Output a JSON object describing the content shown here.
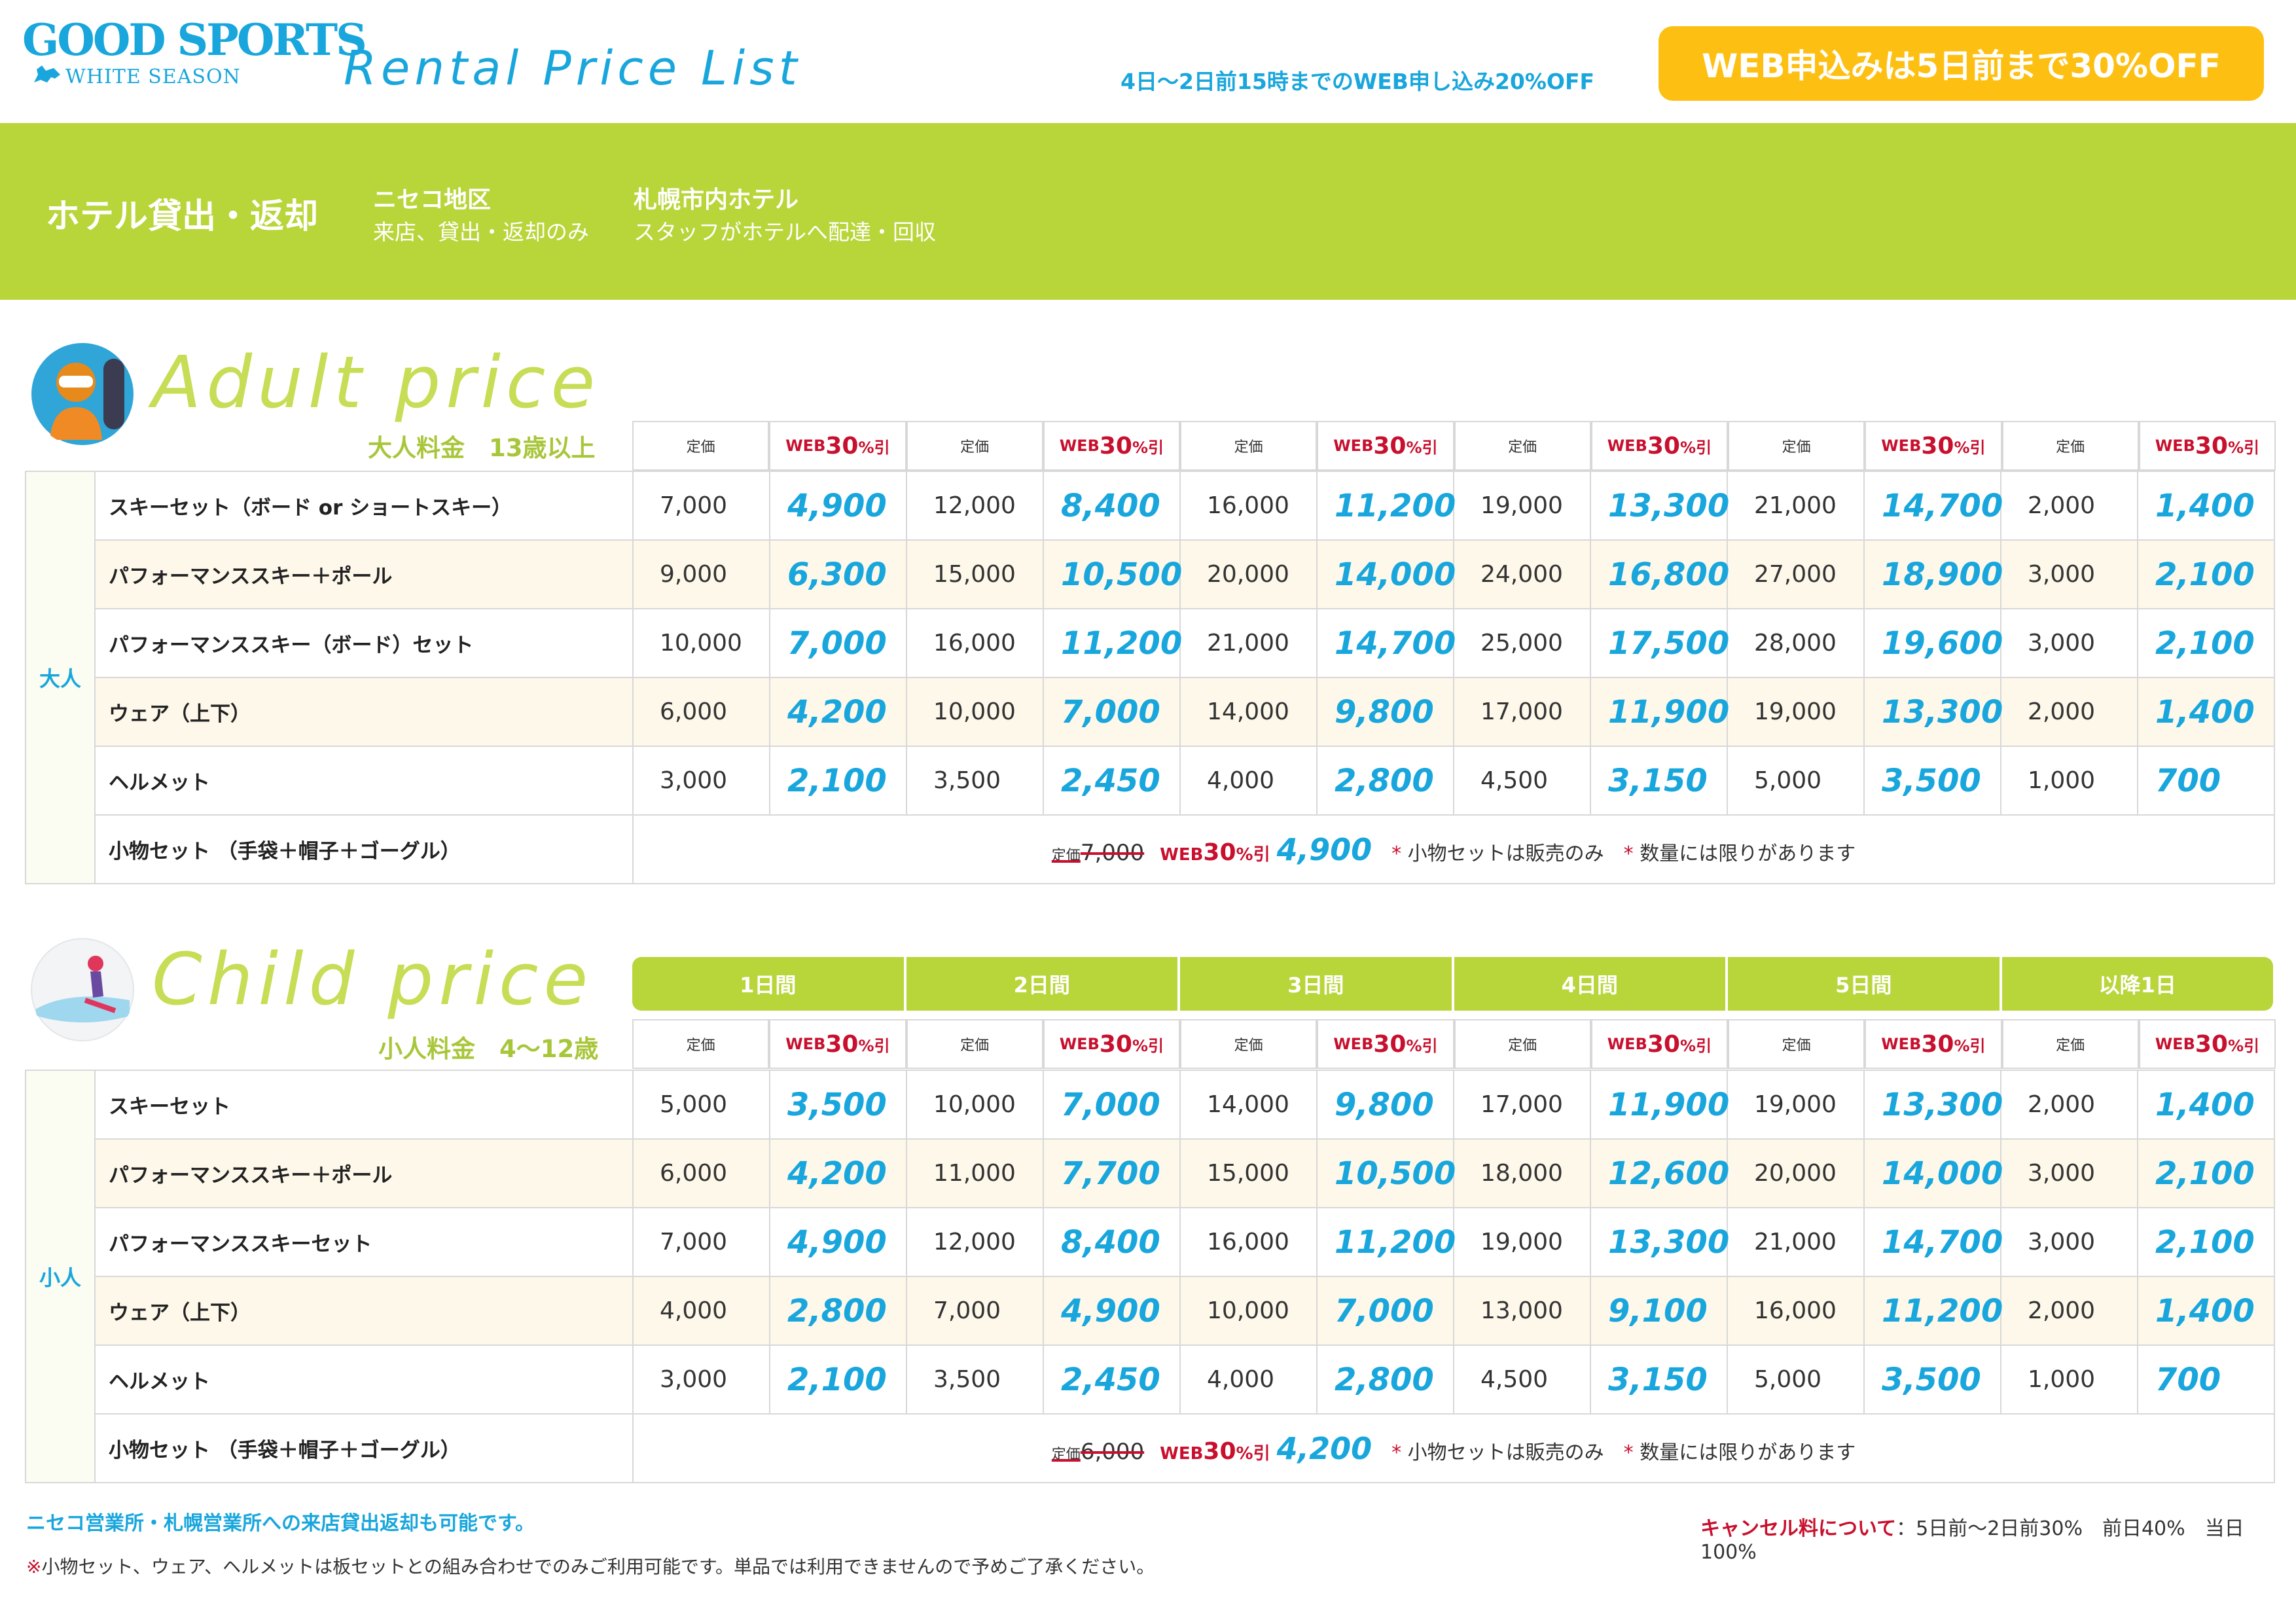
{
  "brand": {
    "name": "GOOD SPORTS",
    "sub": "WHITE SEASON",
    "title": "Rental Price List"
  },
  "promo": {
    "small": "4日〜2日前15時までのWEB申し込み20%OFF",
    "badge": "WEB申込みは5日前まで30%OFF"
  },
  "band": {
    "title": "ホテル貸出・返却",
    "areas": [
      {
        "name": "ニセコ地区",
        "desc": "来店、貸出・返却のみ"
      },
      {
        "name": "札幌市内ホテル",
        "desc": "スタッフがホテルへ配達・回収"
      }
    ]
  },
  "headers": {
    "regular": "定価",
    "web_prefix": "WEB",
    "web_pct": "30",
    "web_suffix": "%引",
    "days": [
      "1日間",
      "2日間",
      "3日間",
      "4日間",
      "5日間",
      "以降1日"
    ]
  },
  "adult": {
    "title": "Adult price",
    "subtitle": "大人料金　13歳以上",
    "category": "大人",
    "rows": [
      {
        "name": "スキーセット（ボード or ショートスキー）",
        "prices": [
          [
            "7,000",
            "4,900"
          ],
          [
            "12,000",
            "8,400"
          ],
          [
            "16,000",
            "11,200"
          ],
          [
            "19,000",
            "13,300"
          ],
          [
            "21,000",
            "14,700"
          ],
          [
            "2,000",
            "1,400"
          ]
        ]
      },
      {
        "name": "パフォーマンススキー＋ポール",
        "prices": [
          [
            "9,000",
            "6,300"
          ],
          [
            "15,000",
            "10,500"
          ],
          [
            "20,000",
            "14,000"
          ],
          [
            "24,000",
            "16,800"
          ],
          [
            "27,000",
            "18,900"
          ],
          [
            "3,000",
            "2,100"
          ]
        ]
      },
      {
        "name": "パフォーマンススキー（ボード）セット",
        "prices": [
          [
            "10,000",
            "7,000"
          ],
          [
            "16,000",
            "11,200"
          ],
          [
            "21,000",
            "14,700"
          ],
          [
            "25,000",
            "17,500"
          ],
          [
            "28,000",
            "19,600"
          ],
          [
            "3,000",
            "2,100"
          ]
        ]
      },
      {
        "name": "ウェア（上下）",
        "prices": [
          [
            "6,000",
            "4,200"
          ],
          [
            "10,000",
            "7,000"
          ],
          [
            "14,000",
            "9,800"
          ],
          [
            "17,000",
            "11,900"
          ],
          [
            "19,000",
            "13,300"
          ],
          [
            "2,000",
            "1,400"
          ]
        ]
      },
      {
        "name": "ヘルメット",
        "prices": [
          [
            "3,000",
            "2,100"
          ],
          [
            "3,500",
            "2,450"
          ],
          [
            "4,000",
            "2,800"
          ],
          [
            "4,500",
            "3,150"
          ],
          [
            "5,000",
            "3,500"
          ],
          [
            "1,000",
            "700"
          ]
        ]
      }
    ],
    "accessory": {
      "name": "小物セット （手袋＋帽子＋ゴーグル）",
      "label": "定価",
      "regular": "7,000",
      "web": "4,900"
    }
  },
  "child": {
    "title": "Child price",
    "subtitle": "小人料金　4〜12歳",
    "category": "小人",
    "rows": [
      {
        "name": "スキーセット",
        "prices": [
          [
            "5,000",
            "3,500"
          ],
          [
            "10,000",
            "7,000"
          ],
          [
            "14,000",
            "9,800"
          ],
          [
            "17,000",
            "11,900"
          ],
          [
            "19,000",
            "13,300"
          ],
          [
            "2,000",
            "1,400"
          ]
        ]
      },
      {
        "name": "パフォーマンススキー＋ポール",
        "prices": [
          [
            "6,000",
            "4,200"
          ],
          [
            "11,000",
            "7,700"
          ],
          [
            "15,000",
            "10,500"
          ],
          [
            "18,000",
            "12,600"
          ],
          [
            "20,000",
            "14,000"
          ],
          [
            "3,000",
            "2,100"
          ]
        ]
      },
      {
        "name": "パフォーマンススキーセット",
        "prices": [
          [
            "7,000",
            "4,900"
          ],
          [
            "12,000",
            "8,400"
          ],
          [
            "16,000",
            "11,200"
          ],
          [
            "19,000",
            "13,300"
          ],
          [
            "21,000",
            "14,700"
          ],
          [
            "3,000",
            "2,100"
          ]
        ]
      },
      {
        "name": "ウェア（上下）",
        "prices": [
          [
            "4,000",
            "2,800"
          ],
          [
            "7,000",
            "4,900"
          ],
          [
            "10,000",
            "7,000"
          ],
          [
            "13,000",
            "9,100"
          ],
          [
            "16,000",
            "11,200"
          ],
          [
            "2,000",
            "1,400"
          ]
        ]
      },
      {
        "name": "ヘルメット",
        "prices": [
          [
            "3,000",
            "2,100"
          ],
          [
            "3,500",
            "2,450"
          ],
          [
            "4,000",
            "2,800"
          ],
          [
            "4,500",
            "3,150"
          ],
          [
            "5,000",
            "3,500"
          ],
          [
            "1,000",
            "700"
          ]
        ]
      }
    ],
    "accessory": {
      "name": "小物セット （手袋＋帽子＋ゴーグル）",
      "label": "定価",
      "regular": "6,000",
      "web": "4,200"
    }
  },
  "notes": {
    "sale_only": "小物セットは販売のみ",
    "limited": "数量には限りがあります",
    "asterisk": "*"
  },
  "footer": {
    "line1": "ニセコ営業所・札幌営業所への来店貸出返却も可能です。",
    "line2_mark": "※",
    "line2": "小物セット、ウェア、ヘルメットは板セットとの組み合わせでのみご利用可能です。単品では利用できませんので予めご了承ください。",
    "cancel_label": "キャンセル料について",
    "cancel_text": "：5日前〜2日前30%　前日40%　当日100%"
  },
  "colors": {
    "blue": "#19a6dc",
    "green": "#b8d53a",
    "yellow": "#fdc012",
    "red": "#c8102e"
  }
}
